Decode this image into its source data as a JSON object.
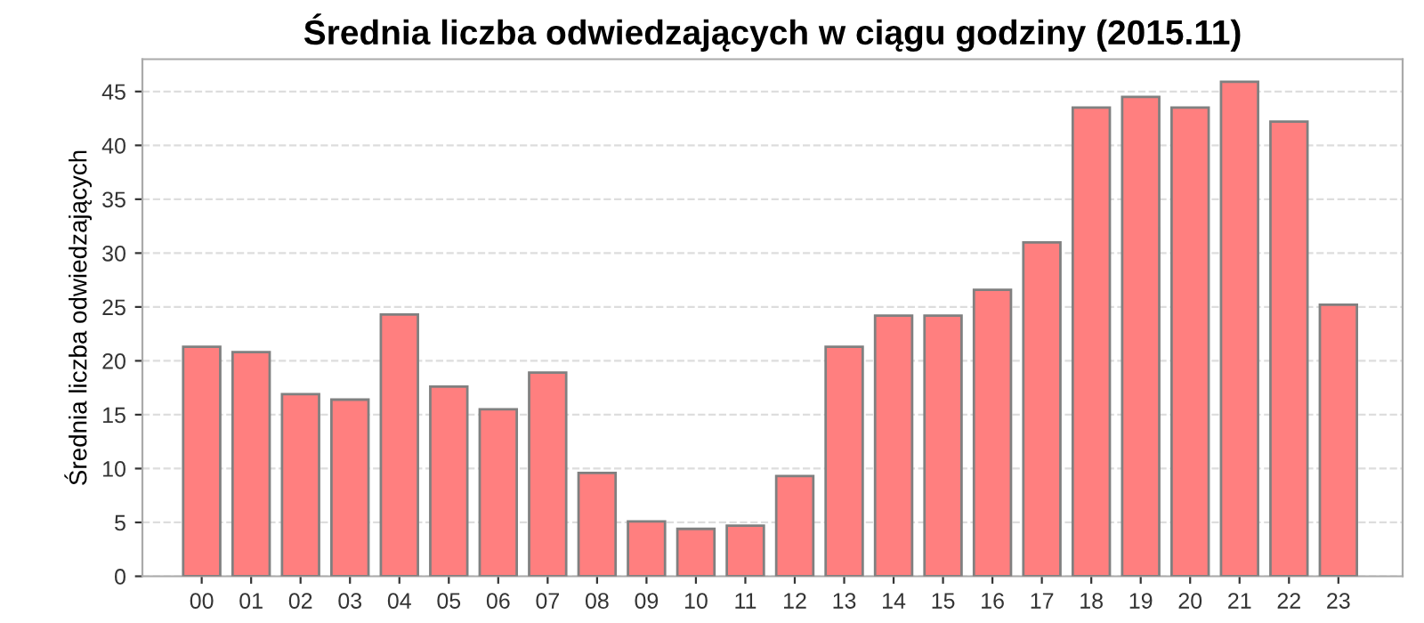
{
  "chart_data": {
    "type": "bar",
    "title": "Średnia liczba odwiedzających w ciągu godziny (2015.11)",
    "ylabel": "Średnia liczba odwiedzających",
    "categories": [
      "00",
      "01",
      "02",
      "03",
      "04",
      "05",
      "06",
      "07",
      "08",
      "09",
      "10",
      "11",
      "12",
      "13",
      "14",
      "15",
      "16",
      "17",
      "18",
      "19",
      "20",
      "21",
      "22",
      "23"
    ],
    "values": [
      21.3,
      20.8,
      16.9,
      16.4,
      24.3,
      17.6,
      15.5,
      18.9,
      9.6,
      5.1,
      4.4,
      4.7,
      9.3,
      21.3,
      24.2,
      24.2,
      26.6,
      31.0,
      43.5,
      44.5,
      43.5,
      45.9,
      42.2,
      25.2
    ],
    "color": "#ff7f7f",
    "ylim": [
      0,
      48
    ],
    "yticks": [
      0,
      5,
      10,
      15,
      20,
      25,
      30,
      35,
      40,
      45
    ],
    "grid": "y"
  }
}
